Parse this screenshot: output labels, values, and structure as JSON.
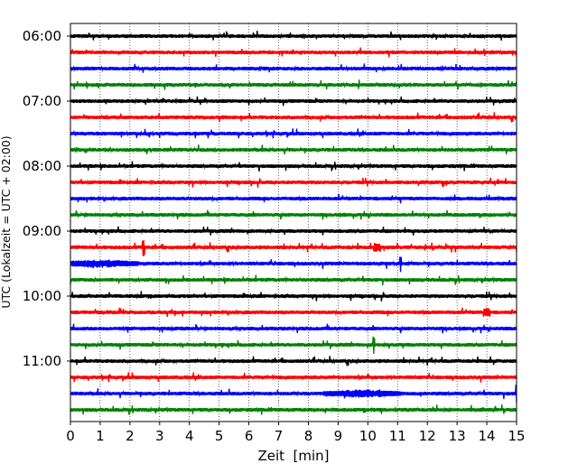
{
  "chart_data": {
    "type": "line",
    "title": "",
    "xlabel": "Zeit  [min]",
    "ylabel": "UTC (Lokalzeit = UTC + 02:00)",
    "xlim": [
      0,
      15
    ],
    "x_ticks": [
      "0",
      "1",
      "2",
      "3",
      "4",
      "5",
      "6",
      "7",
      "8",
      "9",
      "10",
      "11",
      "12",
      "13",
      "14",
      "15"
    ],
    "y_tick_labels": [
      "06:00",
      "07:00",
      "08:00",
      "09:00",
      "10:00",
      "11:00"
    ],
    "start_time": "06:00",
    "trace_interval_minutes": 15,
    "trace_count": 24,
    "grid": "vertical-dotted",
    "trace_colors": [
      "#000000",
      "#ff0000",
      "#0000ff",
      "#008000"
    ],
    "notable_events": [
      {
        "time": "09:15",
        "minute": 2.45,
        "color": "#ff0000",
        "amplitude": "spike"
      },
      {
        "time": "09:15",
        "minute": 10.3,
        "color": "#ff0000",
        "amplitude": "medium"
      },
      {
        "time": "09:30",
        "minute": 1.0,
        "color": "#0000ff",
        "amplitude": "burst"
      },
      {
        "time": "09:30",
        "minute": 11.1,
        "color": "#0000ff",
        "amplitude": "spike"
      },
      {
        "time": "10:15",
        "minute": 14.0,
        "color": "#ff0000",
        "amplitude": "medium"
      },
      {
        "time": "10:45",
        "minute": 10.2,
        "color": "#008000",
        "amplitude": "spike"
      },
      {
        "time": "11:30",
        "minute": 9.8,
        "color": "#0000ff",
        "amplitude": "burst"
      },
      {
        "time": "11:30",
        "minute": 15.0,
        "color": "#0000ff",
        "amplitude": "spike"
      }
    ]
  }
}
